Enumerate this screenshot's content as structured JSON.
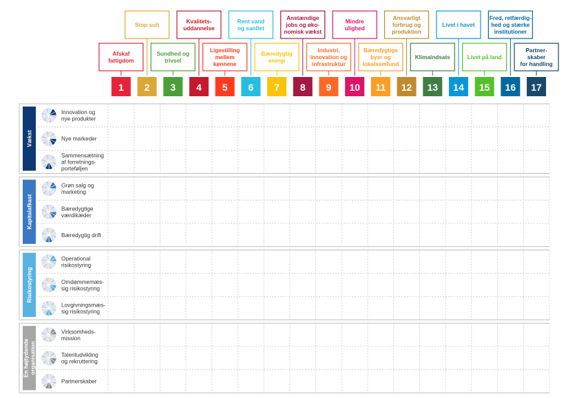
{
  "goals": [
    {
      "num": "1",
      "label": [
        "Afskaf",
        "fattigdom"
      ],
      "color": "#e5243b"
    },
    {
      "num": "2",
      "label": [
        "Stop sult"
      ],
      "color": "#dda63a"
    },
    {
      "num": "3",
      "label": [
        "Sundhed og",
        "trivsel"
      ],
      "color": "#4c9f38"
    },
    {
      "num": "4",
      "label": [
        "Kvalitets-",
        "uddannelse"
      ],
      "color": "#c5192d"
    },
    {
      "num": "5",
      "label": [
        "Ligestilling",
        "mellem",
        "kønnene"
      ],
      "color": "#ff3a21"
    },
    {
      "num": "6",
      "label": [
        "Rent vand",
        "og sanitet"
      ],
      "color": "#26bde2"
    },
    {
      "num": "7",
      "label": [
        "Bæredygtig",
        "energi"
      ],
      "color": "#fcc30b"
    },
    {
      "num": "8",
      "label": [
        "Anstændige",
        "jobs og øko-",
        "nomisk vækst"
      ],
      "color": "#a21942"
    },
    {
      "num": "9",
      "label": [
        "Industri,",
        "innovation og",
        "infrastruktur"
      ],
      "color": "#fd6925"
    },
    {
      "num": "10",
      "label": [
        "Mindre",
        "ulighed"
      ],
      "color": "#dd1367"
    },
    {
      "num": "11",
      "label": [
        "Bæredygtige",
        "byer og",
        "lokalsamfund"
      ],
      "color": "#fd9d24"
    },
    {
      "num": "12",
      "label": [
        "Ansvarligt",
        "forbrug og",
        "produktion"
      ],
      "color": "#bf8b2e"
    },
    {
      "num": "13",
      "label": [
        "Klimaindsats"
      ],
      "color": "#3f7e44"
    },
    {
      "num": "14",
      "label": [
        "Livet i havet"
      ],
      "color": "#0a97d9"
    },
    {
      "num": "15",
      "label": [
        "Livet på land"
      ],
      "color": "#56c02b"
    },
    {
      "num": "16",
      "label": [
        "Fred, retfærdig-",
        "hed og stærke",
        "institutioner"
      ],
      "color": "#00689d"
    },
    {
      "num": "17",
      "label": [
        "Partner-",
        "skaber",
        "for handling"
      ],
      "color": "#19486a"
    }
  ],
  "categories": [
    {
      "name": [
        "Vækst"
      ],
      "color": "#0d3a73",
      "icon_color": "#0d3a73",
      "rows": [
        [
          "Innovation og",
          "nye produkter"
        ],
        [
          "Nye markeder"
        ],
        [
          "Sammensætning",
          "af forretnings-",
          "porteføljen"
        ]
      ]
    },
    {
      "name": [
        "Kapitalafkast"
      ],
      "color": "#3b78c3",
      "icon_color": "#3b78c3",
      "rows": [
        [
          "Grøn salg og",
          "marketing"
        ],
        [
          "Bæredygtige",
          "værdikæder"
        ],
        [
          "Bæredygtig drift"
        ]
      ]
    },
    {
      "name": [
        "Risikostyring"
      ],
      "color": "#5ab2e0",
      "icon_color": "#5ab2e0",
      "rows": [
        [
          "Operational",
          "risikostyring"
        ],
        [
          "Omdømmemæs-",
          "sig risikostyring"
        ],
        [
          "Lovgivningsmæs-",
          "sig risikostyring"
        ]
      ]
    },
    {
      "name": [
        "En højtydende",
        "organisation"
      ],
      "color": "#a6a6a6",
      "icon_color": "#8c8c8c",
      "rows": [
        [
          "Virksomheds-",
          "mission"
        ],
        [
          "Talentudvikling",
          "og rekruttering"
        ],
        [
          "Partnerskaber"
        ]
      ]
    }
  ]
}
